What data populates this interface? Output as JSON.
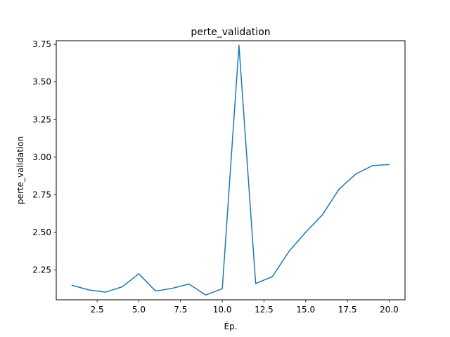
{
  "chart_data": {
    "type": "line",
    "title": "perte_validation",
    "xlabel": "Ép.",
    "ylabel": "perte_validation",
    "xlim": [
      0.05,
      20.95
    ],
    "ylim": [
      2.052,
      3.774
    ],
    "xticks": [
      2.5,
      5.0,
      7.5,
      10.0,
      12.5,
      15.0,
      17.5,
      20.0
    ],
    "xtick_labels": [
      "2.5",
      "5.0",
      "7.5",
      "10.0",
      "12.5",
      "15.0",
      "17.5",
      "20.0"
    ],
    "yticks": [
      2.25,
      2.5,
      2.75,
      3.0,
      3.25,
      3.5,
      3.75
    ],
    "ytick_labels": [
      "2.25",
      "2.50",
      "2.75",
      "3.00",
      "3.25",
      "3.50",
      "3.75"
    ],
    "grid": false,
    "series": [
      {
        "color": "#1f77b4",
        "x": [
          1,
          2,
          3,
          4,
          5,
          6,
          7,
          8,
          9,
          10,
          11,
          12,
          13,
          14,
          15,
          16,
          17,
          18,
          19,
          20
        ],
        "y": [
          2.148,
          2.118,
          2.103,
          2.138,
          2.225,
          2.11,
          2.128,
          2.157,
          2.084,
          2.126,
          3.744,
          2.16,
          2.206,
          2.374,
          2.501,
          2.617,
          2.788,
          2.888,
          2.944,
          2.951
        ]
      }
    ]
  }
}
